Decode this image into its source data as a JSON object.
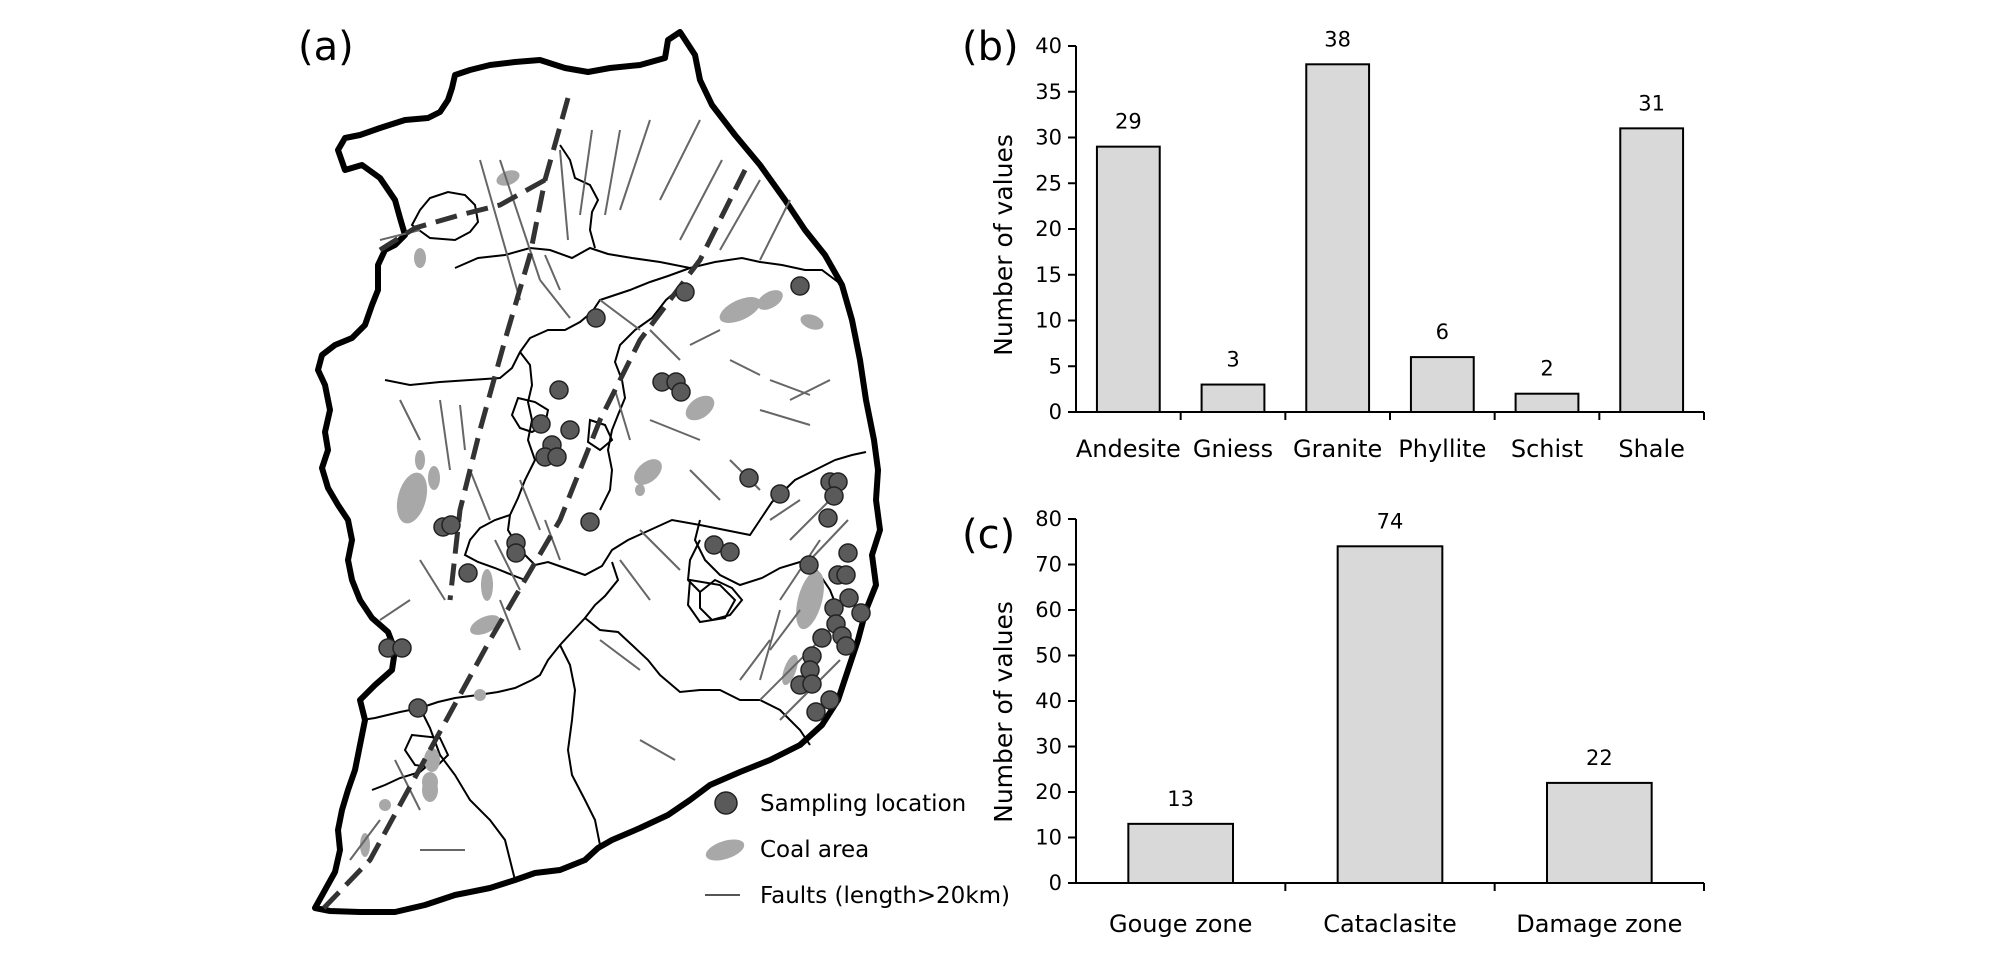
{
  "map": {
    "panel_label": "(a)",
    "legend": [
      {
        "key": "sampling",
        "label": "Sampling location",
        "color": "#5a5a5a"
      },
      {
        "key": "coal",
        "label": "Coal area",
        "color": "#a8a8a8"
      },
      {
        "key": "faults",
        "label": "Faults (length>20km)",
        "color": "#555555"
      }
    ]
  },
  "chart_data": [
    {
      "panel_label": "(b)",
      "type": "bar",
      "categories": [
        "Andesite",
        "Gniess",
        "Granite",
        "Phyllite",
        "Schist",
        "Shale"
      ],
      "values": [
        29,
        3,
        38,
        6,
        2,
        31
      ],
      "title": "",
      "xlabel": "",
      "ylabel": "Number of values",
      "ylim": [
        0,
        40
      ],
      "yticks": [
        0,
        5,
        10,
        15,
        20,
        25,
        30,
        35,
        40
      ],
      "bar_color": "#d9d9d9",
      "grid": false
    },
    {
      "panel_label": "(c)",
      "type": "bar",
      "categories": [
        "Gouge zone",
        "Cataclasite",
        "Damage zone"
      ],
      "values": [
        13,
        74,
        22
      ],
      "title": "",
      "xlabel": "",
      "ylabel": "Number of values",
      "ylim": [
        0,
        80
      ],
      "yticks": [
        0,
        10,
        20,
        30,
        40,
        50,
        60,
        70,
        80
      ],
      "bar_color": "#d9d9d9",
      "grid": false
    }
  ]
}
